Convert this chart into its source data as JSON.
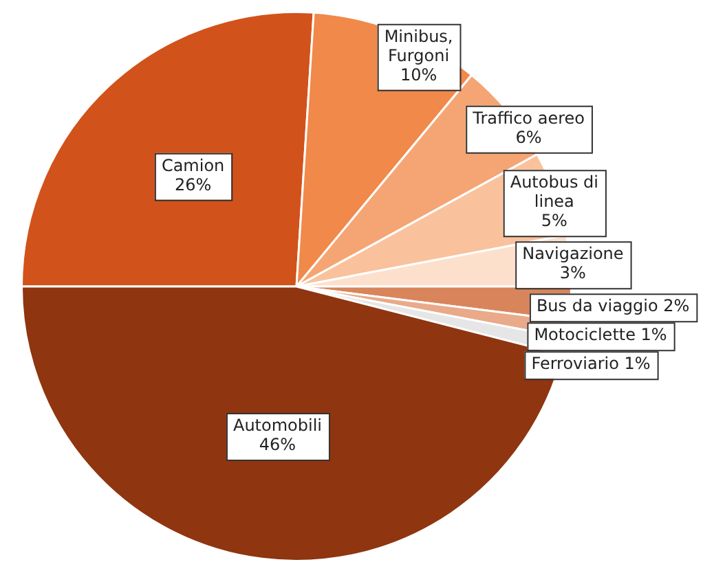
{
  "chart_data": {
    "type": "pie",
    "categories": [
      "Camion",
      "Minibus, Furgoni",
      "Traffico aereo",
      "Autobus di linea",
      "Navigazione",
      "Bus da viaggio",
      "Motociclette",
      "Ferroviario",
      "Automobili"
    ],
    "values": [
      26,
      10,
      6,
      5,
      3,
      2,
      1,
      1,
      46
    ],
    "colors": [
      "#d2521b",
      "#f0894a",
      "#f5a573",
      "#f9c29c",
      "#fde0cc",
      "#d9855c",
      "#e9aa8a",
      "#e6e6e6",
      "#8f3510"
    ],
    "value_labels": [
      "26%",
      "10%",
      "6%",
      "5%",
      "3%",
      "2%",
      "1%",
      "1%",
      "46%"
    ],
    "legend": false
  }
}
